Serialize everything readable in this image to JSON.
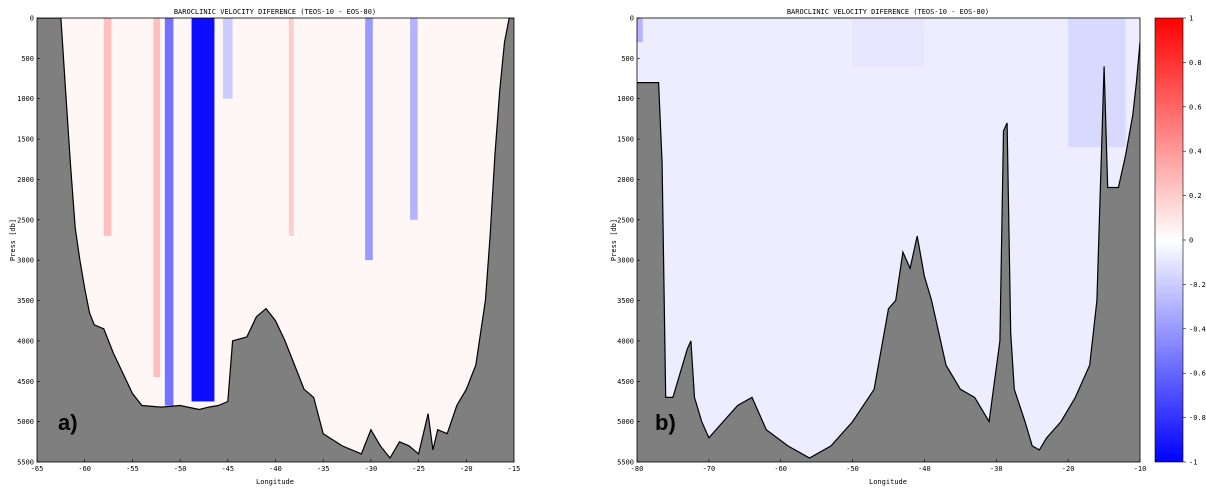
{
  "colors": {
    "land": "#7f7f7f",
    "coast": "#000000",
    "background_field": "#fff7f5",
    "frame": "#000000"
  },
  "colorbar": {
    "ticks": [
      "1",
      "0.8",
      "0.6",
      "0.4",
      "0.2",
      "0",
      "-0.2",
      "-0.4",
      "-0.6",
      "-0.8",
      "-1"
    ],
    "values": [
      1,
      0.8,
      0.6,
      0.4,
      0.2,
      0,
      -0.2,
      -0.4,
      -0.6,
      -0.8,
      -1
    ],
    "colormap": "blue-white-red"
  },
  "chart_data": [
    {
      "type": "heatmap",
      "panel_label": "a)",
      "title": "BAROCLINIC VELOCITY DIFERENCE (TEOS-10 - EOS-80)",
      "xlabel": "Longitude",
      "ylabel": "Press [db]",
      "xlim": [
        -65,
        -15
      ],
      "ylim": [
        5500,
        0
      ],
      "xticks": [
        "-65",
        "-60",
        "-55",
        "-50",
        "-45",
        "-40",
        "-35",
        "-30",
        "-25",
        "-20",
        "-15"
      ],
      "yticks": [
        "0",
        "500",
        "1000",
        "1500",
        "2000",
        "2500",
        "3000",
        "3500",
        "4000",
        "4500",
        "5000",
        "5500"
      ],
      "bathymetry": [
        [
          -65,
          0
        ],
        [
          -62.5,
          0
        ],
        [
          -62,
          900
        ],
        [
          -61.5,
          1800
        ],
        [
          -61,
          2600
        ],
        [
          -60.5,
          3000
        ],
        [
          -60,
          3350
        ],
        [
          -59.5,
          3650
        ],
        [
          -59,
          3800
        ],
        [
          -58,
          3850
        ],
        [
          -57,
          4150
        ],
        [
          -56,
          4400
        ],
        [
          -55,
          4650
        ],
        [
          -54,
          4800
        ],
        [
          -52,
          4820
        ],
        [
          -50,
          4800
        ],
        [
          -48,
          4850
        ],
        [
          -47,
          4820
        ],
        [
          -46,
          4800
        ],
        [
          -45,
          4750
        ],
        [
          -44.5,
          4000
        ],
        [
          -43,
          3950
        ],
        [
          -42,
          3700
        ],
        [
          -41,
          3600
        ],
        [
          -40,
          3750
        ],
        [
          -39,
          4000
        ],
        [
          -38,
          4300
        ],
        [
          -37,
          4600
        ],
        [
          -36,
          4700
        ],
        [
          -35,
          5150
        ],
        [
          -33,
          5300
        ],
        [
          -31,
          5400
        ],
        [
          -30,
          5100
        ],
        [
          -29,
          5300
        ],
        [
          -28,
          5450
        ],
        [
          -27,
          5250
        ],
        [
          -26,
          5300
        ],
        [
          -25,
          5400
        ],
        [
          -24,
          4900
        ],
        [
          -23.5,
          5350
        ],
        [
          -23,
          5100
        ],
        [
          -22,
          5150
        ],
        [
          -21,
          4800
        ],
        [
          -20,
          4600
        ],
        [
          -19,
          4300
        ],
        [
          -18,
          3500
        ],
        [
          -17.5,
          2700
        ],
        [
          -17,
          1700
        ],
        [
          -16.5,
          900
        ],
        [
          -16,
          300
        ],
        [
          -15.5,
          0
        ],
        [
          -15,
          0
        ]
      ],
      "anomalies": [
        {
          "x0": -58.0,
          "x1": -57.2,
          "y0": 0,
          "y1": 2700,
          "value": 0.25
        },
        {
          "x0": -52.8,
          "x1": -52.1,
          "y0": 0,
          "y1": 4450,
          "value": 0.25
        },
        {
          "x0": -51.6,
          "x1": -50.7,
          "y0": 0,
          "y1": 4800,
          "value": -0.55
        },
        {
          "x0": -48.8,
          "x1": -46.4,
          "y0": 0,
          "y1": 4750,
          "value": -0.95
        },
        {
          "x0": -45.5,
          "x1": -44.5,
          "y0": 0,
          "y1": 1000,
          "value": -0.2
        },
        {
          "x0": -38.6,
          "x1": -38.1,
          "y0": 0,
          "y1": 2700,
          "value": 0.2
        },
        {
          "x0": -30.6,
          "x1": -29.8,
          "y0": 0,
          "y1": 3000,
          "value": -0.4
        },
        {
          "x0": -25.9,
          "x1": -25.1,
          "y0": 0,
          "y1": 2500,
          "value": -0.3
        }
      ]
    },
    {
      "type": "heatmap",
      "panel_label": "b)",
      "title": "BAROCLINIC VELOCITY DIFERENCE (TEOS-10 - EOS-80)",
      "xlabel": "Longitude",
      "ylabel": "Press [db]",
      "xlim": [
        -80,
        -10
      ],
      "ylim": [
        5500,
        0
      ],
      "xticks": [
        "-80",
        "-70",
        "-60",
        "-50",
        "-40",
        "-30",
        "-20",
        "-10"
      ],
      "yticks": [
        "0",
        "500",
        "1000",
        "1500",
        "2000",
        "2500",
        "3000",
        "3500",
        "4000",
        "4500",
        "5000",
        "5500"
      ],
      "bathymetry": [
        [
          -80,
          800
        ],
        [
          -77,
          800
        ],
        [
          -76.5,
          1800
        ],
        [
          -76,
          4700
        ],
        [
          -75,
          4700
        ],
        [
          -74,
          4400
        ],
        [
          -73,
          4100
        ],
        [
          -72.5,
          4000
        ],
        [
          -72,
          4700
        ],
        [
          -71,
          5000
        ],
        [
          -70,
          5200
        ],
        [
          -68,
          5000
        ],
        [
          -66,
          4800
        ],
        [
          -64,
          4700
        ],
        [
          -62,
          5100
        ],
        [
          -59,
          5300
        ],
        [
          -56,
          5450
        ],
        [
          -53,
          5300
        ],
        [
          -50,
          5000
        ],
        [
          -47,
          4600
        ],
        [
          -45,
          3600
        ],
        [
          -44,
          3500
        ],
        [
          -43,
          2900
        ],
        [
          -42,
          3100
        ],
        [
          -41,
          2700
        ],
        [
          -40,
          3200
        ],
        [
          -39,
          3500
        ],
        [
          -38,
          3900
        ],
        [
          -37,
          4300
        ],
        [
          -35,
          4600
        ],
        [
          -33,
          4700
        ],
        [
          -31,
          5000
        ],
        [
          -29.5,
          4000
        ],
        [
          -29,
          1400
        ],
        [
          -28.5,
          1300
        ],
        [
          -28,
          3900
        ],
        [
          -27.5,
          4600
        ],
        [
          -26,
          5000
        ],
        [
          -25,
          5300
        ],
        [
          -24,
          5350
        ],
        [
          -23,
          5200
        ],
        [
          -21,
          5000
        ],
        [
          -19,
          4700
        ],
        [
          -17,
          4300
        ],
        [
          -16,
          3500
        ],
        [
          -15,
          600
        ],
        [
          -14.5,
          2100
        ],
        [
          -13,
          2100
        ],
        [
          -12,
          1700
        ],
        [
          -11,
          1200
        ],
        [
          -10.5,
          800
        ],
        [
          -10,
          300
        ]
      ],
      "anomalies": [
        {
          "x0": -80.0,
          "x1": -79.2,
          "y0": 0,
          "y1": 300,
          "value": -0.3
        },
        {
          "x0": -50.0,
          "x1": -40.0,
          "y0": 0,
          "y1": 600,
          "value": -0.1
        },
        {
          "x0": -20.0,
          "x1": -12.0,
          "y0": 0,
          "y1": 1600,
          "value": -0.15
        }
      ],
      "baseline_value": -0.07
    }
  ]
}
